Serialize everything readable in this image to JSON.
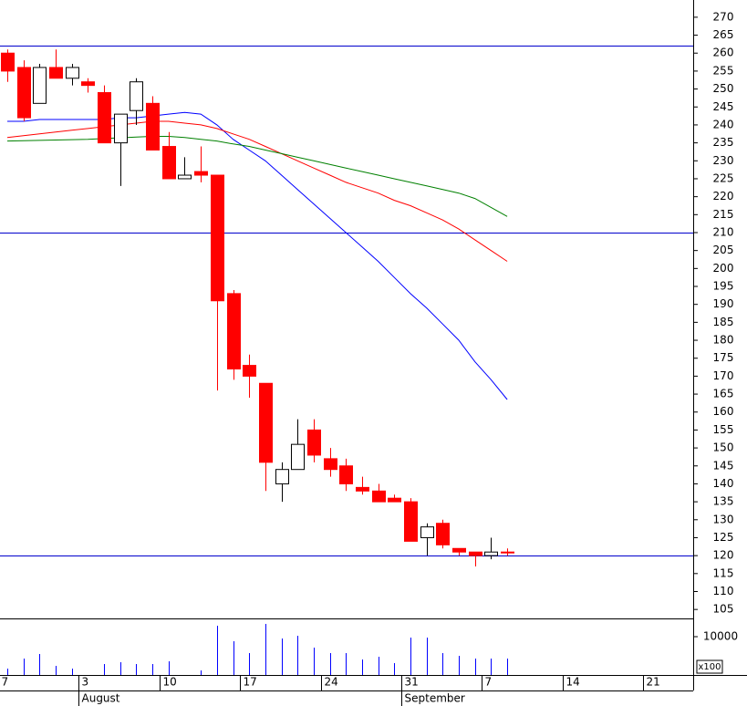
{
  "chart_data": {
    "type": "candlestick",
    "categories": [
      "7",
      null,
      null,
      null,
      null,
      "3",
      null,
      null,
      null,
      null,
      "10",
      null,
      null,
      null,
      null,
      "17",
      null,
      null,
      null,
      null,
      "24",
      null,
      null,
      null,
      null,
      "31",
      null,
      null,
      null,
      null,
      "7",
      null,
      null,
      null,
      null,
      "14",
      null,
      null,
      null,
      null,
      "21",
      null,
      null
    ],
    "month_labels": [
      null,
      null,
      null,
      null,
      null,
      "August",
      null,
      null,
      null,
      null,
      null,
      null,
      null,
      null,
      null,
      null,
      null,
      null,
      null,
      null,
      null,
      null,
      null,
      null,
      null,
      "September",
      null,
      null,
      null,
      null,
      null,
      null,
      null,
      null,
      null,
      null,
      null,
      null,
      null,
      null,
      null,
      null,
      null
    ],
    "open": [
      260,
      256,
      246,
      256,
      253,
      252,
      249,
      235,
      244,
      246,
      234,
      225,
      227,
      226,
      193,
      173,
      168,
      140,
      144,
      155,
      147,
      145,
      139,
      138,
      136,
      135,
      125,
      129,
      122,
      121,
      120,
      121,
      null,
      null,
      null,
      null,
      null,
      null,
      null,
      null,
      null,
      null,
      null
    ],
    "high": [
      261,
      258,
      257,
      261,
      257,
      253,
      251,
      243,
      253,
      248,
      238,
      231,
      234,
      226,
      194,
      176,
      168,
      146,
      158,
      158,
      150,
      147,
      142,
      140,
      137,
      136,
      129,
      130,
      122,
      121,
      125,
      122,
      null,
      null,
      null,
      null,
      null,
      null,
      null,
      null,
      null,
      null,
      null
    ],
    "low": [
      252,
      241,
      246,
      253,
      251,
      249,
      235,
      223,
      240,
      233,
      225,
      225,
      224,
      166,
      169,
      164,
      138,
      135,
      144,
      146,
      142,
      138,
      137,
      135,
      135,
      124,
      120,
      122,
      120,
      117,
      119,
      120,
      null,
      null,
      null,
      null,
      null,
      null,
      null,
      null,
      null,
      null,
      null
    ],
    "close": [
      255,
      242,
      256,
      253,
      256,
      251,
      235,
      243,
      252,
      233,
      225,
      226,
      226,
      191,
      172,
      170,
      146,
      144,
      151,
      148,
      144,
      140,
      138,
      135,
      135,
      124,
      128,
      123,
      121,
      120,
      121,
      121,
      null,
      null,
      null,
      null,
      null,
      null,
      null,
      null,
      null,
      null,
      null
    ],
    "color_up": "#ffffff",
    "color_down": "#ff0000",
    "ylim": [
      102.5,
      274.8
    ],
    "yticks": [
      105,
      110,
      115,
      120,
      125,
      130,
      135,
      140,
      145,
      150,
      155,
      160,
      165,
      170,
      175,
      180,
      185,
      190,
      195,
      200,
      205,
      210,
      215,
      220,
      225,
      230,
      235,
      240,
      245,
      250,
      255,
      260,
      265,
      270
    ],
    "hlines": {
      "values": [
        262,
        210,
        120
      ],
      "color": "#0000cc"
    },
    "lines": [
      {
        "color": "#0000ff",
        "values": [
          241,
          241,
          241.5,
          241.5,
          241.5,
          241.5,
          241.5,
          242,
          242,
          242.5,
          243,
          243.5,
          243,
          240,
          236,
          233,
          230,
          226,
          222,
          218,
          214,
          210,
          206,
          202,
          197.5,
          193,
          189,
          184.5,
          180,
          174,
          169,
          163.5,
          null,
          null,
          null,
          null,
          null,
          null,
          null,
          null,
          null,
          null,
          null
        ]
      },
      {
        "color": "#ff0000",
        "values": [
          236.5,
          237,
          237.5,
          238,
          238.5,
          239,
          239.5,
          240,
          240.5,
          241,
          241,
          240.5,
          240,
          239,
          237.5,
          236,
          234,
          232,
          230,
          228,
          226,
          224,
          222.5,
          221,
          219,
          217.5,
          215.5,
          213.5,
          211,
          208,
          205,
          202,
          null,
          null,
          null,
          null,
          null,
          null,
          null,
          null,
          null,
          null,
          null
        ]
      },
      {
        "color": "#008000",
        "values": [
          235.5,
          235.6,
          235.7,
          235.8,
          235.9,
          236,
          236.2,
          236.4,
          236.6,
          236.8,
          236.8,
          236.5,
          236,
          235.5,
          234.7,
          234,
          233,
          232,
          231,
          230,
          229,
          228,
          227,
          226,
          225,
          224,
          223,
          222,
          221,
          219.5,
          217,
          214.5,
          null,
          null,
          null,
          null,
          null,
          null,
          null,
          null,
          null,
          null,
          null
        ]
      }
    ],
    "volume": {
      "color": "#0000ff",
      "values": [
        1667,
        4286,
        5476,
        2381,
        1667,
        null,
        2857,
        3333,
        2857,
        2857,
        3571,
        null,
        1190,
        12857,
        8810,
        5714,
        13333,
        9524,
        10238,
        7143,
        5714,
        5714,
        4048,
        4762,
        3095,
        9762,
        9762,
        5714,
        5000,
        4286,
        4286,
        4286,
        null,
        null,
        null,
        null,
        null,
        null,
        null,
        null,
        null,
        null,
        null
      ],
      "ylim": [
        0,
        14762
      ],
      "yticks": [
        10000
      ],
      "unit_label": "x100"
    }
  }
}
